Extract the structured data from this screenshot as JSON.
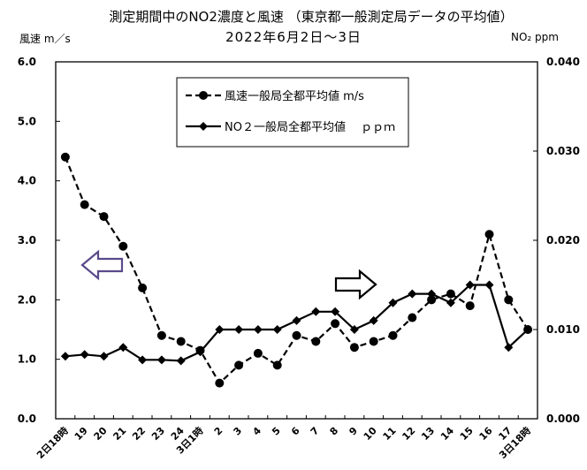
{
  "chart_data": {
    "type": "line",
    "title": "測定期間中のNO2濃度と風速 （東京都一般測定局データの平均値）",
    "subtitle": "2022年6月2日～3日",
    "ylabel_left": "風速 m／s",
    "ylabel_right": "NO₂ ppm",
    "ylim_left": [
      0,
      6
    ],
    "ylim_right": [
      0,
      0.04
    ],
    "yticks_left": [
      "0.0",
      "1.0",
      "2.0",
      "3.0",
      "4.0",
      "5.0",
      "6.0"
    ],
    "yticks_right": [
      "0.000",
      "0.010",
      "0.020",
      "0.030",
      "0.040"
    ],
    "categories": [
      "2日18時",
      "19",
      "20",
      "21",
      "22",
      "23",
      "24",
      "3日1時",
      "2",
      "3",
      "4",
      "5",
      "6",
      "7",
      "8",
      "9",
      "10",
      "11",
      "12",
      "13",
      "14",
      "15",
      "16",
      "17",
      "3日18時"
    ],
    "grid": false,
    "series": [
      {
        "name": "風速一般局全都平均値 m/s",
        "axis": "left",
        "style": "dashed",
        "marker": "circle",
        "values": [
          4.4,
          3.6,
          3.4,
          2.9,
          2.2,
          1.4,
          1.3,
          1.15,
          0.6,
          0.9,
          1.1,
          0.9,
          1.4,
          1.3,
          1.6,
          1.2,
          1.3,
          1.4,
          1.7,
          2.0,
          2.1,
          1.9,
          3.1,
          2.0,
          1.5
        ]
      },
      {
        "name": "NO２一般局全都平均値 ppm",
        "axis": "right",
        "style": "solid",
        "marker": "diamond",
        "values": [
          0.007,
          0.0072,
          0.007,
          0.008,
          0.0066,
          0.0066,
          0.0065,
          0.0075,
          0.01,
          0.01,
          0.01,
          0.01,
          0.011,
          0.012,
          0.012,
          0.01,
          0.011,
          0.013,
          0.014,
          0.014,
          0.013,
          0.015,
          0.015,
          0.008,
          0.01
        ]
      }
    ],
    "legend": {
      "placement": "top-center",
      "entries": [
        "風速一般局全都平均値 m/s",
        "NO２一般局全都平均値 　ｐｐｍ"
      ]
    }
  }
}
